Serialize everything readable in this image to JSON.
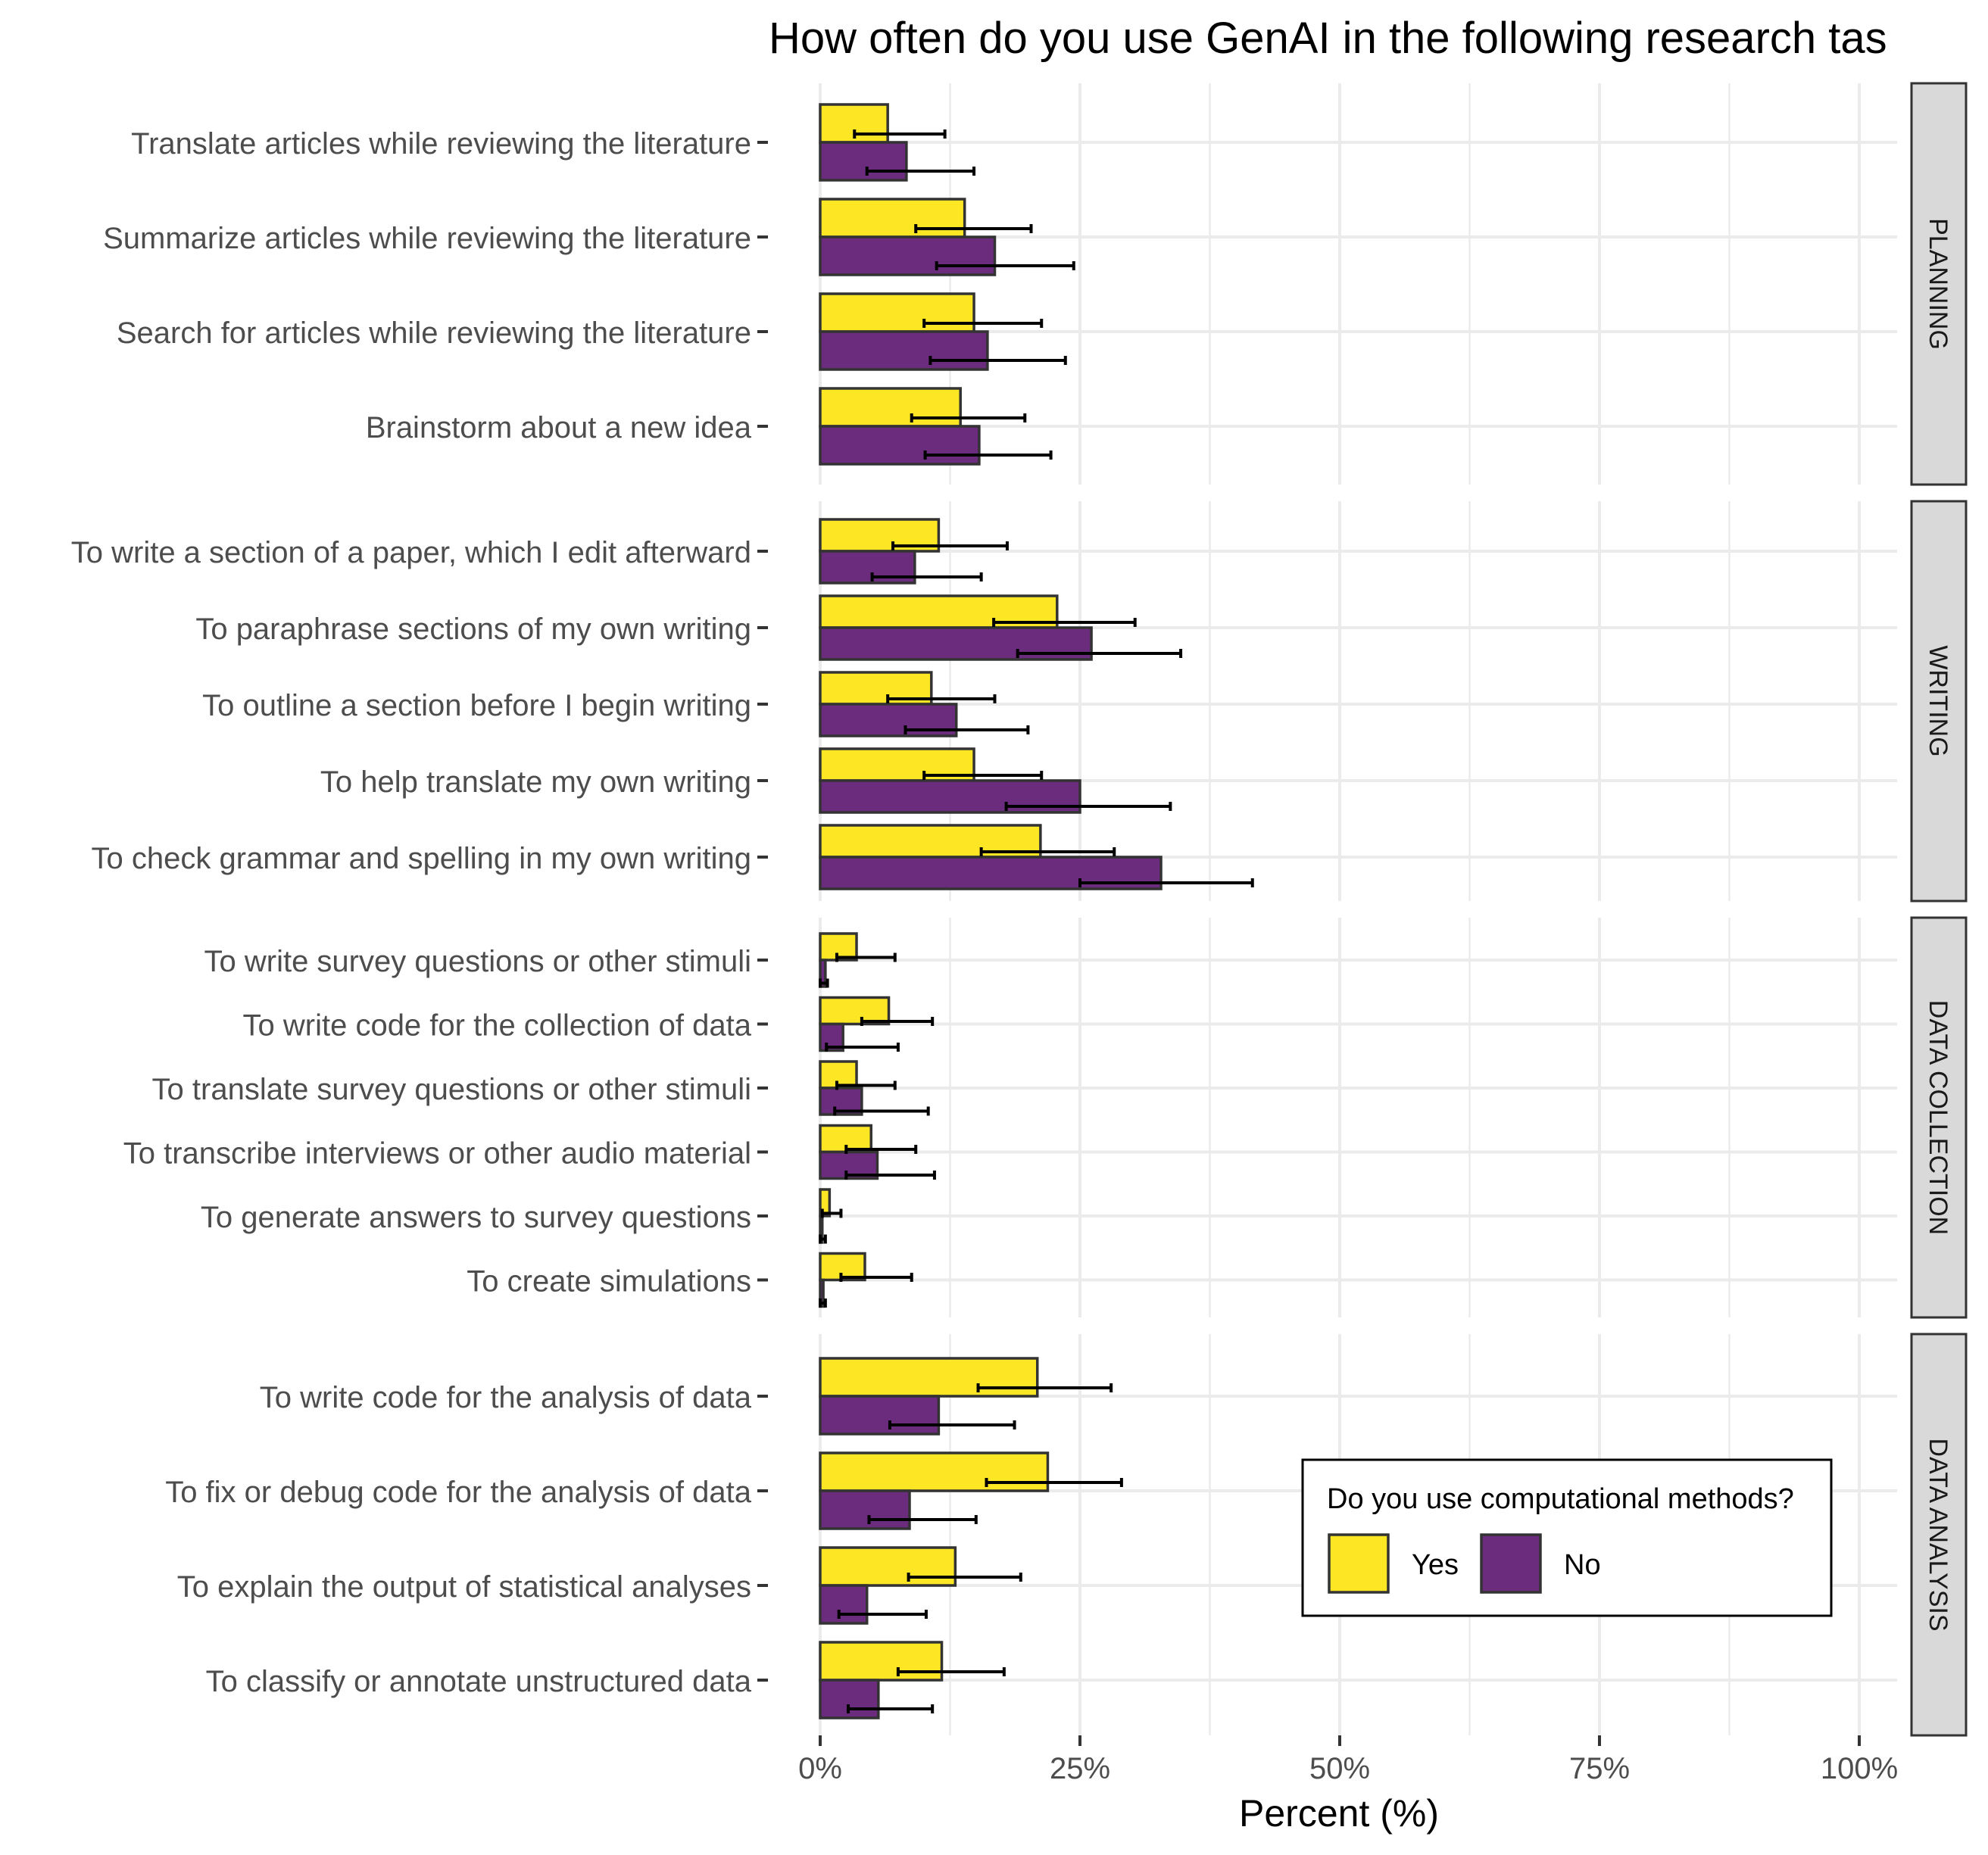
{
  "chart_data": {
    "type": "bar",
    "orientation": "horizontal",
    "title": "How often do you use GenAI in the following research tas",
    "xlabel": "Percent (%)",
    "ylabel": "",
    "xlim": [
      0,
      1
    ],
    "x_ticks": [
      {
        "value": 0,
        "label": "0%"
      },
      {
        "value": 0.25,
        "label": "25%"
      },
      {
        "value": 0.5,
        "label": "50%"
      },
      {
        "value": 0.75,
        "label": "75%"
      },
      {
        "value": 1.0,
        "label": "100%"
      }
    ],
    "grid": true,
    "series": [
      {
        "name": "Yes",
        "color": "#FDE725"
      },
      {
        "name": "No",
        "color": "#6B2C7D"
      }
    ],
    "legend": {
      "title": "Do you use computational methods?",
      "position": "inside-bottom-right"
    },
    "facets": [
      {
        "label": "PLANNING",
        "rows": [
          {
            "category": "Translate articles while reviewing the literature",
            "yes": 0.065,
            "yes_ci": [
              0.033,
              0.12
            ],
            "no": 0.083,
            "no_ci": [
              0.045,
              0.148
            ]
          },
          {
            "category": "Summarize articles while reviewing the literature",
            "yes": 0.139,
            "yes_ci": [
              0.092,
              0.203
            ],
            "no": 0.168,
            "no_ci": [
              0.112,
              0.244
            ]
          },
          {
            "category": "Search for articles while reviewing the literature",
            "yes": 0.148,
            "yes_ci": [
              0.1,
              0.213
            ],
            "no": 0.161,
            "no_ci": [
              0.106,
              0.236
            ]
          },
          {
            "category": "Brainstorm about a new idea",
            "yes": 0.135,
            "yes_ci": [
              0.088,
              0.197
            ],
            "no": 0.153,
            "no_ci": [
              0.101,
              0.222
            ]
          }
        ]
      },
      {
        "label": "WRITING",
        "rows": [
          {
            "category": "To write a section of a paper, which I edit afterward",
            "yes": 0.114,
            "yes_ci": [
              0.07,
              0.18
            ],
            "no": 0.091,
            "no_ci": [
              0.05,
              0.155
            ]
          },
          {
            "category": "To paraphrase sections of my own writing",
            "yes": 0.228,
            "yes_ci": [
              0.167,
              0.303
            ],
            "no": 0.261,
            "no_ci": [
              0.19,
              0.347
            ]
          },
          {
            "category": "To outline a section before I begin writing",
            "yes": 0.107,
            "yes_ci": [
              0.065,
              0.168
            ],
            "no": 0.131,
            "no_ci": [
              0.082,
              0.2
            ]
          },
          {
            "category": "To help translate my own writing",
            "yes": 0.148,
            "yes_ci": [
              0.1,
              0.213
            ],
            "no": 0.25,
            "no_ci": [
              0.179,
              0.337
            ]
          },
          {
            "category": "To check grammar and spelling in my own writing",
            "yes": 0.212,
            "yes_ci": [
              0.155,
              0.283
            ],
            "no": 0.328,
            "no_ci": [
              0.25,
              0.416
            ]
          }
        ]
      },
      {
        "label": "DATA COLLECTION",
        "rows": [
          {
            "category": "To write survey questions or other stimuli",
            "yes": 0.035,
            "yes_ci": [
              0.016,
              0.072
            ],
            "no": 0.005,
            "no_ci": [
              0.0,
              0.007
            ]
          },
          {
            "category": "To write code for the collection of data",
            "yes": 0.066,
            "yes_ci": [
              0.04,
              0.108
            ],
            "no": 0.022,
            "no_ci": [
              0.006,
              0.075
            ]
          },
          {
            "category": "To translate survey questions or other stimuli",
            "yes": 0.035,
            "yes_ci": [
              0.016,
              0.072
            ],
            "no": 0.04,
            "no_ci": [
              0.014,
              0.104
            ]
          },
          {
            "category": "To transcribe interviews or other audio material",
            "yes": 0.049,
            "yes_ci": [
              0.025,
              0.092
            ],
            "no": 0.055,
            "no_ci": [
              0.025,
              0.11
            ]
          },
          {
            "category": "To generate answers to survey questions",
            "yes": 0.009,
            "yes_ci": [
              0.002,
              0.02
            ],
            "no": 0.002,
            "no_ci": [
              0.0,
              0.005
            ]
          },
          {
            "category": "To create simulations",
            "yes": 0.043,
            "yes_ci": [
              0.02,
              0.088
            ],
            "no": 0.003,
            "no_ci": [
              0.0,
              0.005
            ]
          }
        ]
      },
      {
        "label": "DATA ANALYSIS",
        "rows": [
          {
            "category": "To write code for the analysis of data",
            "yes": 0.209,
            "yes_ci": [
              0.152,
              0.28
            ],
            "no": 0.114,
            "no_ci": [
              0.067,
              0.187
            ]
          },
          {
            "category": "To fix or debug code for the analysis of data",
            "yes": 0.219,
            "yes_ci": [
              0.16,
              0.29
            ],
            "no": 0.086,
            "no_ci": [
              0.047,
              0.15
            ]
          },
          {
            "category": "To explain the output of statistical analyses",
            "yes": 0.13,
            "yes_ci": [
              0.085,
              0.193
            ],
            "no": 0.045,
            "no_ci": [
              0.018,
              0.102
            ]
          },
          {
            "category": "To classify or annotate unstructured data",
            "yes": 0.117,
            "yes_ci": [
              0.075,
              0.177
            ],
            "no": 0.056,
            "no_ci": [
              0.027,
              0.108
            ]
          }
        ]
      }
    ]
  }
}
